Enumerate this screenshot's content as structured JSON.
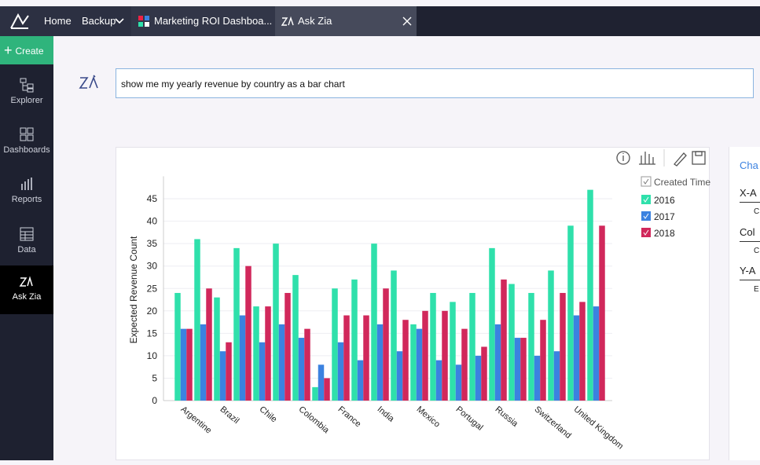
{
  "top_bar": {
    "tabs": [
      "Home",
      "Backup",
      "Marketing ROI Dashboa...",
      "Ask Zia"
    ]
  },
  "sidebar": {
    "create": "Create",
    "items": [
      "Explorer",
      "Dashboards",
      "Reports",
      "Data",
      "Ask Zia"
    ]
  },
  "query": "show me my yearly revenue by country as a bar chart",
  "chart_data": {
    "type": "bar",
    "y_label": "Expected Revenue Count",
    "legend_title": "Created Time",
    "categories": [
      "Argentine",
      null,
      "Brazil",
      null,
      "Chile",
      null,
      "Colombia",
      null,
      "France",
      null,
      "India",
      null,
      "Mexico",
      null,
      "Portugal",
      null,
      "Russia",
      null,
      "Switzerland",
      null,
      "United Kingdom",
      null
    ],
    "series": [
      {
        "name": "2016",
        "color": "#2fe0ab",
        "values": [
          24,
          36,
          23,
          34,
          21,
          35,
          28,
          3,
          25,
          27,
          35,
          29,
          17,
          24,
          22,
          24,
          34,
          26,
          24,
          29,
          39,
          47
        ]
      },
      {
        "name": "2017",
        "color": "#3b82e0",
        "values": [
          16,
          17,
          11,
          19,
          13,
          17,
          14,
          8,
          13,
          9,
          17,
          11,
          16,
          9,
          8,
          10,
          17,
          14,
          10,
          11,
          19,
          21
        ]
      },
      {
        "name": "2018",
        "color": "#d1285b",
        "values": [
          16,
          25,
          13,
          30,
          21,
          24,
          16,
          5,
          19,
          19,
          25,
          18,
          20,
          20,
          16,
          12,
          27,
          14,
          18,
          24,
          22,
          39
        ]
      }
    ],
    "ylim": [
      0,
      50
    ],
    "yticks": [
      0,
      5,
      10,
      15,
      20,
      25,
      30,
      35,
      40,
      45
    ],
    "grid": true
  },
  "side_panel": {
    "title": "Cha",
    "sections": [
      {
        "title": "X-A",
        "item": "C"
      },
      {
        "title": "Col",
        "item": "C"
      },
      {
        "title": "Y-A",
        "item": "E"
      }
    ]
  }
}
